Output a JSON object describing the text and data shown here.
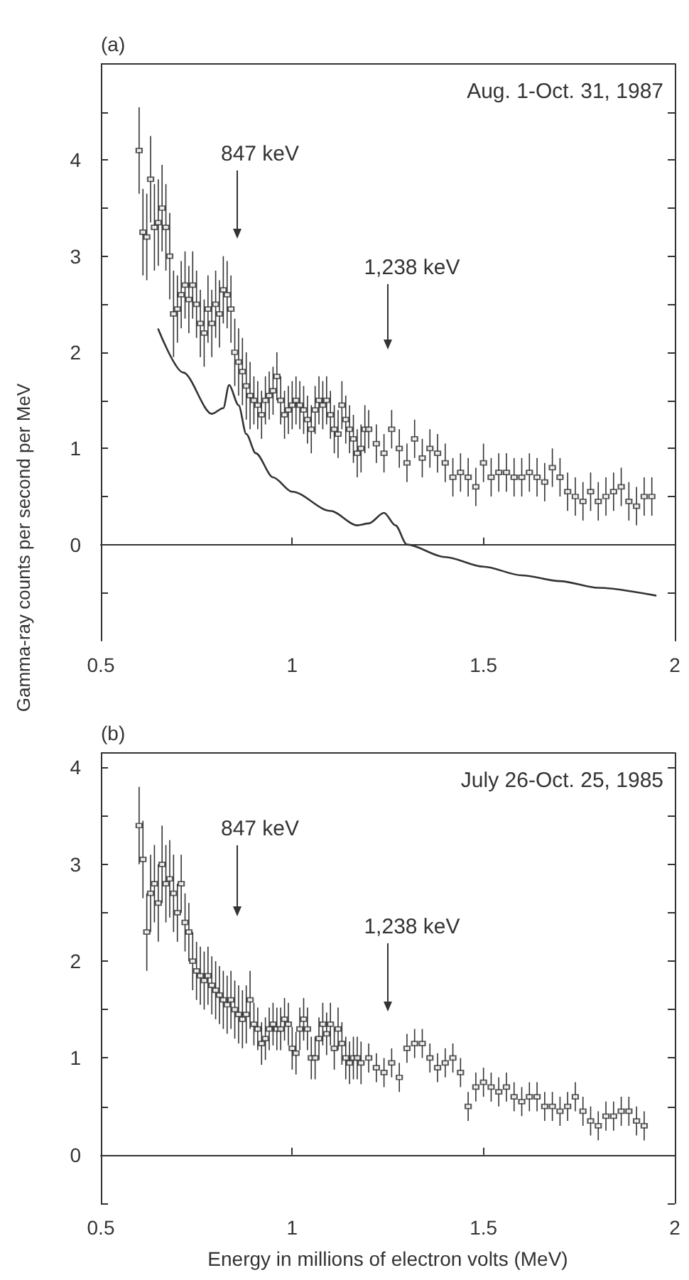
{
  "chart_data": [
    {
      "type": "scatter",
      "title": "(a)",
      "ylabel": "Gamma-ray counts per second per MeV",
      "annotations": [
        "Aug. 1-Oct. 31, 1987",
        "847 keV",
        "1,238 keV"
      ],
      "xlim": [
        0.5,
        2
      ],
      "xticks": [
        0.5,
        1,
        1.5,
        2
      ],
      "ylim": [
        -1,
        5
      ],
      "yticks": [
        {
          "value": -0.5,
          "label": null
        },
        0,
        {
          "value": 0.5,
          "label": null
        },
        1,
        {
          "value": 1.5,
          "label": null
        },
        2,
        {
          "value": 2.5,
          "label": null
        },
        3,
        {
          "value": 3.5,
          "label": null
        },
        4,
        {
          "value": 4.5,
          "label": null
        }
      ],
      "series": [
        {
          "marker": "square",
          "color": "#333333",
          "x": [
            0.6,
            0.61,
            0.62,
            0.63,
            0.64,
            0.65,
            0.66,
            0.67,
            0.68,
            0.69,
            0.7,
            0.71,
            0.72,
            0.73,
            0.74,
            0.75,
            0.76,
            0.77,
            0.78,
            0.79,
            0.8,
            0.81,
            0.82,
            0.83,
            0.84,
            0.85,
            0.86,
            0.87,
            0.88,
            0.89,
            0.9,
            0.91,
            0.92,
            0.93,
            0.94,
            0.95,
            0.96,
            0.97,
            0.98,
            0.99,
            1.0,
            1.01,
            1.02,
            1.03,
            1.04,
            1.05,
            1.06,
            1.07,
            1.08,
            1.09,
            1.1,
            1.11,
            1.12,
            1.13,
            1.14,
            1.15,
            1.16,
            1.17,
            1.18,
            1.19,
            1.2,
            1.22,
            1.24,
            1.26,
            1.28,
            1.3,
            1.32,
            1.34,
            1.36,
            1.38,
            1.4,
            1.42,
            1.44,
            1.46,
            1.48,
            1.5,
            1.52,
            1.54,
            1.56,
            1.58,
            1.6,
            1.62,
            1.64,
            1.66,
            1.68,
            1.7,
            1.72,
            1.74,
            1.76,
            1.78,
            1.8,
            1.82,
            1.84,
            1.86,
            1.88,
            1.9,
            1.92,
            1.94
          ],
          "values": [
            4.1,
            3.25,
            3.2,
            3.8,
            3.3,
            3.35,
            3.5,
            3.3,
            3.0,
            2.4,
            2.45,
            2.6,
            2.7,
            2.55,
            2.7,
            2.5,
            2.3,
            2.2,
            2.45,
            2.3,
            2.5,
            2.4,
            2.65,
            2.6,
            2.45,
            2.0,
            1.9,
            1.8,
            1.65,
            1.55,
            1.5,
            1.45,
            1.35,
            1.5,
            1.55,
            1.6,
            1.75,
            1.5,
            1.35,
            1.4,
            1.45,
            1.5,
            1.45,
            1.4,
            1.3,
            1.2,
            1.4,
            1.5,
            1.45,
            1.5,
            1.35,
            1.2,
            1.15,
            1.45,
            1.3,
            1.2,
            1.1,
            0.95,
            1.0,
            1.2,
            1.2,
            1.05,
            0.95,
            1.2,
            1.0,
            0.85,
            1.1,
            0.9,
            1.0,
            0.95,
            0.85,
            0.7,
            0.75,
            0.7,
            0.6,
            0.85,
            0.7,
            0.75,
            0.75,
            0.7,
            0.7,
            0.75,
            0.7,
            0.65,
            0.8,
            0.7,
            0.55,
            0.5,
            0.45,
            0.55,
            0.45,
            0.5,
            0.55,
            0.6,
            0.45,
            0.4,
            0.5,
            0.5
          ],
          "errors": [
            0.45,
            0.45,
            0.45,
            0.45,
            0.45,
            0.45,
            0.45,
            0.45,
            0.45,
            0.45,
            0.35,
            0.35,
            0.35,
            0.35,
            0.35,
            0.35,
            0.35,
            0.35,
            0.35,
            0.35,
            0.35,
            0.35,
            0.35,
            0.35,
            0.35,
            0.35,
            0.35,
            0.35,
            0.35,
            0.35,
            0.25,
            0.25,
            0.25,
            0.25,
            0.25,
            0.25,
            0.25,
            0.25,
            0.25,
            0.25,
            0.25,
            0.25,
            0.25,
            0.25,
            0.25,
            0.25,
            0.25,
            0.25,
            0.25,
            0.25,
            0.25,
            0.25,
            0.25,
            0.25,
            0.25,
            0.25,
            0.25,
            0.25,
            0.25,
            0.25,
            0.2,
            0.2,
            0.2,
            0.2,
            0.2,
            0.2,
            0.2,
            0.2,
            0.2,
            0.2,
            0.2,
            0.2,
            0.2,
            0.2,
            0.2,
            0.2,
            0.2,
            0.2,
            0.2,
            0.2,
            0.2,
            0.2,
            0.2,
            0.2,
            0.2,
            0.2,
            0.2,
            0.2,
            0.2,
            0.2,
            0.2,
            0.2,
            0.2,
            0.2,
            0.2,
            0.2,
            0.2,
            0.2
          ]
        },
        {
          "type": "line",
          "color": "#333333",
          "x": [
            0.65,
            0.715,
            0.79,
            0.82,
            0.835,
            0.86,
            0.88,
            0.905,
            0.95,
            1.0,
            1.1,
            1.17,
            1.2,
            1.24,
            1.27,
            1.3,
            1.4,
            1.5,
            1.6,
            1.7,
            1.8,
            1.95
          ],
          "values": [
            2.24,
            1.79,
            1.36,
            1.42,
            1.66,
            1.45,
            1.15,
            0.95,
            0.7,
            0.55,
            0.35,
            0.2,
            0.22,
            0.33,
            0.2,
            0.0,
            -0.13,
            -0.23,
            -0.32,
            -0.38,
            -0.45,
            -0.53
          ]
        }
      ]
    },
    {
      "type": "scatter",
      "title": "(b)",
      "xlabel": "Energy in millions of electron volts (MeV)",
      "annotations": [
        "July 26-Oct. 25, 1985",
        "847 keV",
        "1,238 keV"
      ],
      "xlim": [
        0.5,
        2
      ],
      "xticks": [
        0.5,
        1,
        1.5,
        2
      ],
      "ylim": [
        -0.5,
        4.15
      ],
      "yticks": [
        {
          "value": -0.5,
          "label": null
        },
        0,
        {
          "value": 0.5,
          "label": null
        },
        1,
        {
          "value": 1.5,
          "label": null
        },
        2,
        {
          "value": 2.5,
          "label": null
        },
        3,
        {
          "value": 3.5,
          "label": null
        },
        4
      ],
      "series": [
        {
          "marker": "square",
          "color": "#333333",
          "x": [
            0.6,
            0.61,
            0.62,
            0.63,
            0.64,
            0.65,
            0.66,
            0.67,
            0.68,
            0.69,
            0.7,
            0.71,
            0.72,
            0.73,
            0.74,
            0.75,
            0.76,
            0.77,
            0.78,
            0.79,
            0.8,
            0.81,
            0.82,
            0.83,
            0.84,
            0.85,
            0.86,
            0.87,
            0.88,
            0.89,
            0.9,
            0.91,
            0.92,
            0.93,
            0.94,
            0.95,
            0.96,
            0.97,
            0.98,
            0.99,
            1.0,
            1.01,
            1.02,
            1.03,
            1.04,
            1.05,
            1.06,
            1.07,
            1.08,
            1.09,
            1.1,
            1.11,
            1.12,
            1.13,
            1.14,
            1.15,
            1.16,
            1.17,
            1.18,
            1.2,
            1.22,
            1.24,
            1.26,
            1.28,
            1.3,
            1.32,
            1.34,
            1.36,
            1.38,
            1.4,
            1.42,
            1.44,
            1.46,
            1.48,
            1.5,
            1.52,
            1.54,
            1.56,
            1.58,
            1.6,
            1.62,
            1.64,
            1.66,
            1.68,
            1.7,
            1.72,
            1.74,
            1.76,
            1.78,
            1.8,
            1.82,
            1.84,
            1.86,
            1.88,
            1.9,
            1.92
          ],
          "values": [
            3.4,
            3.05,
            2.3,
            2.7,
            2.8,
            2.6,
            3.0,
            2.8,
            2.85,
            2.7,
            2.5,
            2.8,
            2.4,
            2.3,
            2.0,
            1.9,
            1.85,
            1.8,
            1.85,
            1.75,
            1.7,
            1.65,
            1.6,
            1.55,
            1.6,
            1.5,
            1.45,
            1.4,
            1.45,
            1.6,
            1.35,
            1.3,
            1.15,
            1.2,
            1.3,
            1.35,
            1.3,
            1.3,
            1.4,
            1.35,
            1.1,
            1.05,
            1.3,
            1.4,
            1.3,
            1.0,
            1.0,
            1.2,
            1.35,
            1.25,
            1.35,
            1.1,
            1.3,
            1.15,
            1.0,
            0.95,
            1.0,
            1.0,
            0.95,
            1.0,
            0.9,
            0.85,
            0.95,
            0.8,
            1.1,
            1.15,
            1.15,
            1.0,
            0.9,
            0.95,
            1.0,
            0.85,
            0.5,
            0.7,
            0.75,
            0.7,
            0.65,
            0.7,
            0.6,
            0.55,
            0.6,
            0.6,
            0.5,
            0.5,
            0.45,
            0.5,
            0.6,
            0.45,
            0.35,
            0.3,
            0.4,
            0.4,
            0.45,
            0.45,
            0.35,
            0.3
          ],
          "errors": [
            0.4,
            0.4,
            0.4,
            0.4,
            0.4,
            0.4,
            0.4,
            0.4,
            0.4,
            0.4,
            0.3,
            0.3,
            0.3,
            0.3,
            0.3,
            0.3,
            0.3,
            0.3,
            0.3,
            0.3,
            0.3,
            0.3,
            0.3,
            0.3,
            0.3,
            0.3,
            0.3,
            0.3,
            0.3,
            0.3,
            0.22,
            0.22,
            0.22,
            0.22,
            0.22,
            0.22,
            0.22,
            0.22,
            0.22,
            0.22,
            0.22,
            0.22,
            0.22,
            0.22,
            0.22,
            0.22,
            0.22,
            0.22,
            0.22,
            0.22,
            0.22,
            0.22,
            0.22,
            0.22,
            0.22,
            0.22,
            0.22,
            0.22,
            0.22,
            0.15,
            0.15,
            0.15,
            0.15,
            0.15,
            0.15,
            0.15,
            0.15,
            0.15,
            0.15,
            0.15,
            0.15,
            0.15,
            0.15,
            0.15,
            0.15,
            0.15,
            0.15,
            0.15,
            0.15,
            0.15,
            0.15,
            0.15,
            0.15,
            0.15,
            0.15,
            0.15,
            0.15,
            0.15,
            0.15,
            0.15,
            0.15,
            0.15,
            0.15,
            0.15,
            0.15,
            0.15
          ]
        }
      ]
    }
  ]
}
